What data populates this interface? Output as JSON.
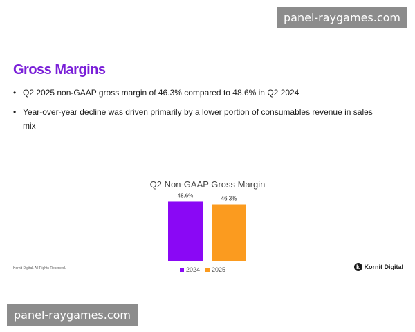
{
  "watermark": "panel-raygames.com",
  "slide": {
    "title": "Gross Margins",
    "title_color": "#7a1fd8",
    "bullet_glyph": "•",
    "bullets": [
      "Q2 2025 non-GAAP gross margin of 46.3% compared to 48.6% in Q2 2024",
      "Year-over-year decline was driven primarily by a lower portion of consumables revenue in sales mix"
    ]
  },
  "chart_data": {
    "type": "bar",
    "title": "Q2 Non-GAAP Gross Margin",
    "categories": [
      "2024",
      "2025"
    ],
    "values": [
      48.6,
      46.3
    ],
    "data_labels": [
      "48.6%",
      "46.3%"
    ],
    "colors": [
      "#8a08f5",
      "#fb9b1f"
    ],
    "ylim": [
      0,
      50
    ],
    "grid": false,
    "legend_position": "bottom",
    "legend": [
      {
        "name": "2024",
        "color": "#8a08f5"
      },
      {
        "name": "2025",
        "color": "#fb9b1f"
      }
    ]
  },
  "footer": {
    "copyright": "Kornit Digital. All Rights Reserved.",
    "brand_mark": "k",
    "brand_name": "Kornit Digital"
  }
}
